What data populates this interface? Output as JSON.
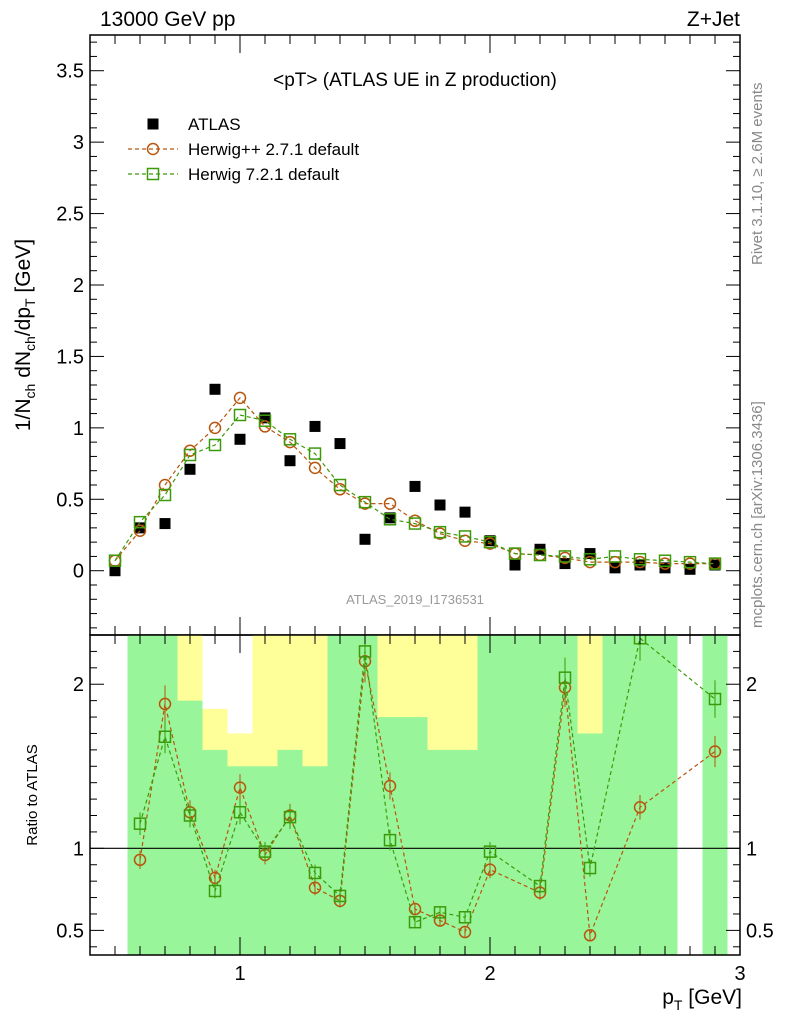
{
  "header": {
    "left": "13000 GeV pp",
    "right": "Z+Jet",
    "side_rivet": "Rivet 3.1.10, ≥ 2.6M events",
    "side_mcplots": "mcplots.cern.ch [arXiv:1306.3436]",
    "analysis_id": "ATLAS_2019_I1736531"
  },
  "colors": {
    "data": "#000000",
    "herwigpp": "#b8560e",
    "herwig7": "#3c9a0a",
    "band_green": "#99f599",
    "band_yellow": "#ffff99",
    "side_text": "#888888"
  },
  "chart_data": [
    {
      "type": "scatter",
      "panel": "main",
      "title": "<pT> (ATLAS UE in Z production)",
      "ylabel": "1/N_ch dN_ch/dp_T [GeV]",
      "xlim": [
        0.4,
        3.0
      ],
      "ylim": [
        -0.45,
        3.75
      ],
      "xticks": [
        1,
        2,
        3
      ],
      "yticks": [
        0,
        0.5,
        1,
        1.5,
        2,
        2.5,
        3,
        3.5
      ],
      "legend_position": "top-left",
      "x": [
        0.5,
        0.6,
        0.7,
        0.8,
        0.9,
        1.0,
        1.1,
        1.2,
        1.3,
        1.4,
        1.5,
        1.6,
        1.7,
        1.8,
        1.9,
        2.0,
        2.1,
        2.2,
        2.3,
        2.4,
        2.5,
        2.6,
        2.7,
        2.8,
        2.9
      ],
      "series": [
        {
          "name": "ATLAS",
          "marker": "square-filled",
          "values": [
            0.0,
            0.3,
            0.33,
            0.71,
            1.27,
            0.92,
            1.07,
            0.77,
            1.01,
            0.89,
            0.22,
            0.37,
            0.59,
            0.46,
            0.41,
            0.21,
            0.04,
            0.15,
            0.05,
            0.12,
            0.02,
            0.04,
            0.02,
            0.01,
            0.04
          ]
        },
        {
          "name": "Herwig++ 2.7.1 default",
          "marker": "circle-open",
          "values": [
            0.07,
            0.28,
            0.6,
            0.84,
            1.0,
            1.21,
            1.01,
            0.9,
            0.72,
            0.57,
            0.47,
            0.47,
            0.35,
            0.26,
            0.21,
            0.19,
            0.12,
            0.11,
            0.09,
            0.06,
            0.06,
            0.06,
            0.05,
            0.05,
            0.05
          ]
        },
        {
          "name": "Herwig 7.2.1 default",
          "marker": "square-open",
          "values": [
            0.07,
            0.34,
            0.53,
            0.81,
            0.88,
            1.09,
            1.05,
            0.92,
            0.82,
            0.6,
            0.48,
            0.36,
            0.33,
            0.27,
            0.24,
            0.2,
            0.12,
            0.11,
            0.1,
            0.08,
            0.1,
            0.08,
            0.07,
            0.06,
            0.05
          ]
        }
      ]
    },
    {
      "type": "scatter",
      "panel": "ratio",
      "ylabel": "Ratio to ATLAS",
      "xlabel": "p_T [GeV]",
      "xlim": [
        0.4,
        3.0
      ],
      "ylim": [
        0.35,
        2.3
      ],
      "xticks": [
        1,
        2,
        3
      ],
      "yticks": [
        0.5,
        1,
        2
      ],
      "reference_line": 1,
      "bins": [
        [
          0.55,
          0.65
        ],
        [
          0.65,
          0.75
        ],
        [
          0.75,
          0.85
        ],
        [
          0.85,
          0.95
        ],
        [
          0.95,
          1.05
        ],
        [
          1.05,
          1.15
        ],
        [
          1.15,
          1.25
        ],
        [
          1.25,
          1.35
        ],
        [
          1.35,
          1.45
        ],
        [
          1.45,
          1.55
        ],
        [
          1.55,
          1.65
        ],
        [
          1.65,
          1.75
        ],
        [
          1.75,
          1.85
        ],
        [
          1.85,
          1.95
        ],
        [
          1.95,
          2.05
        ],
        [
          2.05,
          2.15
        ],
        [
          2.15,
          2.25
        ],
        [
          2.25,
          2.35
        ],
        [
          2.35,
          2.45
        ],
        [
          2.45,
          2.55
        ],
        [
          2.55,
          2.65
        ],
        [
          2.65,
          2.75
        ],
        [
          2.75,
          2.85
        ],
        [
          2.85,
          2.95
        ]
      ],
      "band_green": [
        [
          0.35,
          2.3
        ],
        [
          0.35,
          2.3
        ],
        [
          0.35,
          1.9
        ],
        [
          0.35,
          1.6
        ],
        [
          0.35,
          1.5
        ],
        [
          0.35,
          1.5
        ],
        [
          0.35,
          1.6
        ],
        [
          0.35,
          1.5
        ],
        [
          0.35,
          2.3
        ],
        [
          0.35,
          2.3
        ],
        [
          0.35,
          1.8
        ],
        [
          0.35,
          1.8
        ],
        [
          0.35,
          1.6
        ],
        [
          0.35,
          1.6
        ],
        [
          0.35,
          2.3
        ],
        [
          0.35,
          2.3
        ],
        [
          0.35,
          2.3
        ],
        [
          0.35,
          2.3
        ],
        [
          0.35,
          1.7
        ],
        [
          0.35,
          2.3
        ],
        [
          0.35,
          2.3
        ],
        [
          0.35,
          2.3
        ],
        null,
        [
          0.35,
          2.3
        ]
      ],
      "band_yellow": [
        [
          0.35,
          2.3
        ],
        [
          0.35,
          2.3
        ],
        [
          0.35,
          2.3
        ],
        [
          0.35,
          1.85
        ],
        [
          0.35,
          1.7
        ],
        [
          0.35,
          2.3
        ],
        [
          0.35,
          2.3
        ],
        [
          0.35,
          2.3
        ],
        [
          0.35,
          2.3
        ],
        [
          0.35,
          2.3
        ],
        [
          0.35,
          2.3
        ],
        [
          0.35,
          2.3
        ],
        [
          0.35,
          2.3
        ],
        [
          0.35,
          2.3
        ],
        [
          0.35,
          2.3
        ],
        [
          0.35,
          2.3
        ],
        [
          0.35,
          2.3
        ],
        [
          0.35,
          2.3
        ],
        [
          0.35,
          2.3
        ],
        [
          0.35,
          2.3
        ],
        [
          0.35,
          2.3
        ],
        [
          0.35,
          2.3
        ],
        null,
        [
          0.35,
          2.3
        ]
      ],
      "x": [
        0.6,
        0.7,
        0.8,
        0.9,
        1.0,
        1.1,
        1.2,
        1.3,
        1.4,
        1.5,
        1.6,
        1.7,
        1.8,
        1.9,
        2.0,
        2.2,
        2.3,
        2.4,
        2.6,
        2.9
      ],
      "series": [
        {
          "name": "Herwig++ 2.7.1 default",
          "marker": "circle-open",
          "values": [
            0.93,
            1.88,
            1.22,
            0.82,
            1.37,
            0.96,
            1.2,
            0.76,
            0.68,
            2.14,
            1.38,
            0.63,
            0.56,
            0.49,
            0.87,
            0.73,
            1.98,
            0.47,
            1.25,
            1.59
          ]
        },
        {
          "name": "Herwig 7.2.1 default",
          "marker": "square-open",
          "values": [
            1.15,
            1.68,
            1.2,
            0.74,
            1.22,
            0.98,
            1.19,
            0.85,
            0.71,
            2.2,
            1.05,
            0.55,
            0.61,
            0.58,
            0.98,
            0.77,
            2.04,
            0.88,
            2.28,
            1.91
          ]
        }
      ]
    }
  ]
}
